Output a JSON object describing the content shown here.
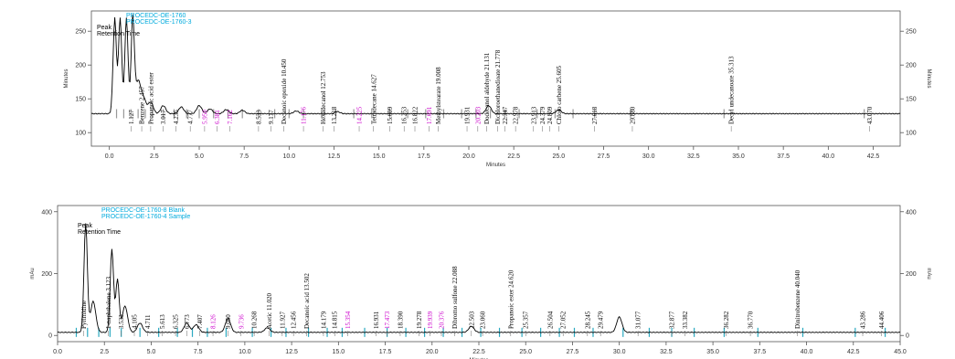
{
  "colors": {
    "trace": "#000000",
    "axis": "#555555",
    "peak_label": "#000000",
    "peak_label_alt": "#cc00cc",
    "legend": "#00aadd",
    "event_marker": "#2aa9c0",
    "baseline_marker": "#999999"
  },
  "chart_data": [
    {
      "type": "line",
      "ylabel_left": "Minutes",
      "ylabel_right": "Minutes",
      "xlabel": "Minutes",
      "xlim": [
        -1.0,
        44.0
      ],
      "ylim": [
        80,
        280
      ],
      "x_ticks": [
        "0.0",
        "2.5",
        "5.0",
        "7.5",
        "10.0",
        "12.5",
        "15.0",
        "17.5",
        "20.0",
        "22.5",
        "25.0",
        "27.5",
        "30.0",
        "32.5",
        "35.0",
        "37.5",
        "40.0",
        "42.5"
      ],
      "x_tick_values": [
        0,
        2.5,
        5,
        7.5,
        10,
        12.5,
        15,
        17.5,
        20,
        22.5,
        25,
        27.5,
        30,
        32.5,
        35,
        37.5,
        40,
        42.5
      ],
      "y_ticks": [
        "100",
        "150",
        "200",
        "250"
      ],
      "y_tick_values": [
        100,
        150,
        200,
        250
      ],
      "legend": [
        "PROCEDC-OE-1760",
        "PROCEDC-OE-1760-3"
      ],
      "inner_labels": [
        "Peak",
        "Retention Time"
      ],
      "baseline": 128,
      "peaks": [
        {
          "x": 0.3,
          "h": 270
        },
        {
          "x": 0.6,
          "h": 270
        },
        {
          "x": 0.95,
          "h": 270
        },
        {
          "x": 1.3,
          "h": 270
        },
        {
          "x": 1.6,
          "h": 175
        },
        {
          "x": 1.9,
          "h": 150
        },
        {
          "x": 2.3,
          "h": 145
        },
        {
          "x": 3.0,
          "h": 140
        },
        {
          "x": 4.0,
          "h": 138
        },
        {
          "x": 5.0,
          "h": 140
        },
        {
          "x": 5.6,
          "h": 135
        },
        {
          "x": 6.5,
          "h": 134
        },
        {
          "x": 7.4,
          "h": 133
        },
        {
          "x": 10.4,
          "h": 132
        },
        {
          "x": 12.7,
          "h": 131
        },
        {
          "x": 21.1,
          "h": 140
        },
        {
          "x": 25.0,
          "h": 134
        }
      ],
      "annotations": [
        {
          "x": 1.2,
          "text": "1.127",
          "color": "black"
        },
        {
          "x": 1.8,
          "text": "Benzene 2.457",
          "color": "black"
        },
        {
          "x": 2.3,
          "text": "Propanoic acid ester",
          "color": "black"
        },
        {
          "x": 3.0,
          "text": "3.017",
          "color": "black"
        },
        {
          "x": 3.7,
          "text": "4.235",
          "color": "black"
        },
        {
          "x": 4.5,
          "text": "4.777",
          "color": "black"
        },
        {
          "x": 5.3,
          "text": "5.950",
          "color": "magenta"
        },
        {
          "x": 6.0,
          "text": "6.381",
          "color": "magenta"
        },
        {
          "x": 6.7,
          "text": "7.162",
          "color": "magenta"
        },
        {
          "x": 8.3,
          "text": "8.533",
          "color": "black"
        },
        {
          "x": 9.0,
          "text": "9.177",
          "color": "black"
        },
        {
          "x": 9.7,
          "text": "Decanoic epoxide 10.450",
          "color": "black"
        },
        {
          "x": 10.8,
          "text": "11.176",
          "color": "magenta"
        },
        {
          "x": 11.9,
          "text": "Hexadecanol 12.753",
          "color": "black"
        },
        {
          "x": 12.5,
          "text": "13.218",
          "color": "black"
        },
        {
          "x": 13.9,
          "text": "14.225",
          "color": "magenta"
        },
        {
          "x": 14.7,
          "text": "Tetradecane 14.627",
          "color": "black"
        },
        {
          "x": 15.6,
          "text": "15.609",
          "color": "black"
        },
        {
          "x": 16.4,
          "text": "16.253",
          "color": "black"
        },
        {
          "x": 17.0,
          "text": "16.822",
          "color": "black"
        },
        {
          "x": 17.8,
          "text": "17.691",
          "color": "magenta"
        },
        {
          "x": 18.3,
          "text": "Methylstearate 19.008",
          "color": "black"
        },
        {
          "x": 19.9,
          "text": "19.931",
          "color": "black"
        },
        {
          "x": 20.5,
          "text": "20.203",
          "color": "magenta"
        },
        {
          "x": 21.0,
          "text": "Dodecanol aldehyde 21.131",
          "color": "black"
        },
        {
          "x": 21.6,
          "text": "Dichloroethanedioate 21.778",
          "color": "black"
        },
        {
          "x": 22.0,
          "text": "22.347",
          "color": "black"
        },
        {
          "x": 22.6,
          "text": "22.978",
          "color": "black"
        },
        {
          "x": 23.6,
          "text": "23.913",
          "color": "black"
        },
        {
          "x": 24.1,
          "text": "24.379",
          "color": "black"
        },
        {
          "x": 24.5,
          "text": "24.809",
          "color": "black"
        },
        {
          "x": 25.0,
          "text": "Chloro carbene 25.605",
          "color": "black"
        },
        {
          "x": 27.0,
          "text": "27.618",
          "color": "black"
        },
        {
          "x": 29.1,
          "text": "29.880",
          "color": "black"
        },
        {
          "x": 34.6,
          "text": "Decyl undecanoate 35.313",
          "color": "black"
        },
        {
          "x": 42.3,
          "text": "43.070",
          "color": "black"
        }
      ],
      "markers_x": [
        0.4,
        0.8,
        1.2,
        1.6,
        2.0,
        2.4,
        3.0,
        3.6,
        4.3,
        5.0,
        5.8,
        6.6,
        7.4,
        8.3,
        9.2,
        10.0,
        10.8,
        11.8,
        12.6,
        13.6,
        14.6,
        15.6,
        16.6,
        17.6,
        18.6,
        19.6,
        20.4,
        21.2,
        22.0,
        22.8,
        23.8,
        24.8,
        25.8,
        27.0,
        29.0,
        34.2,
        42.0
      ]
    },
    {
      "type": "line",
      "ylabel_left": "mAu",
      "ylabel_right": "mAu",
      "xlabel": "Minutes",
      "xlim": [
        0.0,
        45.0
      ],
      "ylim": [
        -20,
        420
      ],
      "x_ticks": [
        "0.0",
        "2.5",
        "5.0",
        "7.5",
        "10.0",
        "12.5",
        "15.0",
        "17.5",
        "20.0",
        "22.5",
        "25.0",
        "27.5",
        "30.0",
        "32.5",
        "35.0",
        "37.5",
        "40.0",
        "42.5",
        "45.0"
      ],
      "x_tick_values": [
        0,
        2.5,
        5,
        7.5,
        10,
        12.5,
        15,
        17.5,
        20,
        22.5,
        25,
        27.5,
        30,
        32.5,
        35,
        37.5,
        40,
        42.5,
        45
      ],
      "y_ticks": [
        "0",
        "200",
        "400"
      ],
      "y_tick_values": [
        0,
        200,
        400
      ],
      "legend": [
        "PROCEDC-OE-1760-8 Blank",
        "PROCEDC-OE-1760-4 Sample"
      ],
      "inner_labels": [
        "Peak",
        "Retention Time"
      ],
      "baseline": 10,
      "peaks": [
        {
          "x": 1.5,
          "h": 360
        },
        {
          "x": 1.9,
          "h": 110
        },
        {
          "x": 2.9,
          "h": 280
        },
        {
          "x": 3.2,
          "h": 180
        },
        {
          "x": 3.6,
          "h": 95
        },
        {
          "x": 4.4,
          "h": 40
        },
        {
          "x": 6.9,
          "h": 40
        },
        {
          "x": 7.4,
          "h": 35
        },
        {
          "x": 9.1,
          "h": 55
        },
        {
          "x": 11.2,
          "h": 25
        },
        {
          "x": 22.1,
          "h": 30
        },
        {
          "x": 30.0,
          "h": 60
        }
      ],
      "annotations": [
        {
          "x": 1.4,
          "text": "Pyrimidine",
          "color": "black"
        },
        {
          "x": 2.7,
          "text": "1-naphthalene 3.123",
          "color": "black"
        },
        {
          "x": 3.4,
          "text": "3.533",
          "color": "black"
        },
        {
          "x": 4.1,
          "text": "4.105",
          "color": "black"
        },
        {
          "x": 4.8,
          "text": "4.711",
          "color": "black"
        },
        {
          "x": 5.6,
          "text": "5.613",
          "color": "black"
        },
        {
          "x": 6.3,
          "text": "6.325",
          "color": "black"
        },
        {
          "x": 6.9,
          "text": "6.773",
          "color": "black"
        },
        {
          "x": 7.6,
          "text": "7.407",
          "color": "black"
        },
        {
          "x": 8.3,
          "text": "8.126",
          "color": "magenta"
        },
        {
          "x": 9.1,
          "text": "9.050",
          "color": "black"
        },
        {
          "x": 9.8,
          "text": "9.736",
          "color": "magenta"
        },
        {
          "x": 10.5,
          "text": "10.268",
          "color": "black"
        },
        {
          "x": 11.3,
          "text": "Acetic 11.020",
          "color": "black"
        },
        {
          "x": 12.0,
          "text": "11.927",
          "color": "black"
        },
        {
          "x": 12.6,
          "text": "12.456",
          "color": "black"
        },
        {
          "x": 13.3,
          "text": "Decanoic acid 13.502",
          "color": "black"
        },
        {
          "x": 14.2,
          "text": "14.179",
          "color": "black"
        },
        {
          "x": 14.8,
          "text": "14.815",
          "color": "black"
        },
        {
          "x": 15.5,
          "text": "15.354",
          "color": "magenta"
        },
        {
          "x": 17.0,
          "text": "16.931",
          "color": "black"
        },
        {
          "x": 17.6,
          "text": "17.473",
          "color": "magenta"
        },
        {
          "x": 18.3,
          "text": "18.390",
          "color": "black"
        },
        {
          "x": 19.3,
          "text": "19.278",
          "color": "black"
        },
        {
          "x": 19.9,
          "text": "19.939",
          "color": "magenta"
        },
        {
          "x": 20.5,
          "text": "20.376",
          "color": "magenta"
        },
        {
          "x": 21.2,
          "text": "Dibromo sulfone 22.088",
          "color": "black"
        },
        {
          "x": 22.1,
          "text": "22.503",
          "color": "black"
        },
        {
          "x": 22.7,
          "text": "23.060",
          "color": "black"
        },
        {
          "x": 24.2,
          "text": "Propanoic ester 24.620",
          "color": "black"
        },
        {
          "x": 25.0,
          "text": "25.357",
          "color": "black"
        },
        {
          "x": 26.3,
          "text": "26.504",
          "color": "black"
        },
        {
          "x": 27.0,
          "text": "27.052",
          "color": "black"
        },
        {
          "x": 28.3,
          "text": "28.245",
          "color": "black"
        },
        {
          "x": 29.0,
          "text": "29.479",
          "color": "black"
        },
        {
          "x": 31.0,
          "text": "31.077",
          "color": "black"
        },
        {
          "x": 32.8,
          "text": "32.877",
          "color": "black"
        },
        {
          "x": 33.5,
          "text": "33.382",
          "color": "black"
        },
        {
          "x": 35.7,
          "text": "36.282",
          "color": "black"
        },
        {
          "x": 37.0,
          "text": "36.770",
          "color": "black"
        },
        {
          "x": 39.5,
          "text": "Dinitrobenzene 40.040",
          "color": "black"
        },
        {
          "x": 43.0,
          "text": "43.286",
          "color": "black"
        },
        {
          "x": 44.0,
          "text": "44.406",
          "color": "black"
        }
      ],
      "markers_x": [
        1.0,
        1.6,
        2.2,
        2.8,
        3.4,
        4.4,
        5.4,
        6.4,
        7.2,
        8.0,
        9.0,
        10.4,
        11.4,
        12.2,
        13.4,
        14.4,
        15.2,
        16.4,
        17.6,
        18.6,
        19.6,
        20.6,
        21.6,
        22.6,
        23.6,
        24.8,
        25.8,
        26.8,
        27.6,
        28.6,
        30.2,
        31.6,
        32.8,
        34.0,
        35.6,
        37.4,
        39.8,
        42.6,
        44.2
      ]
    }
  ]
}
